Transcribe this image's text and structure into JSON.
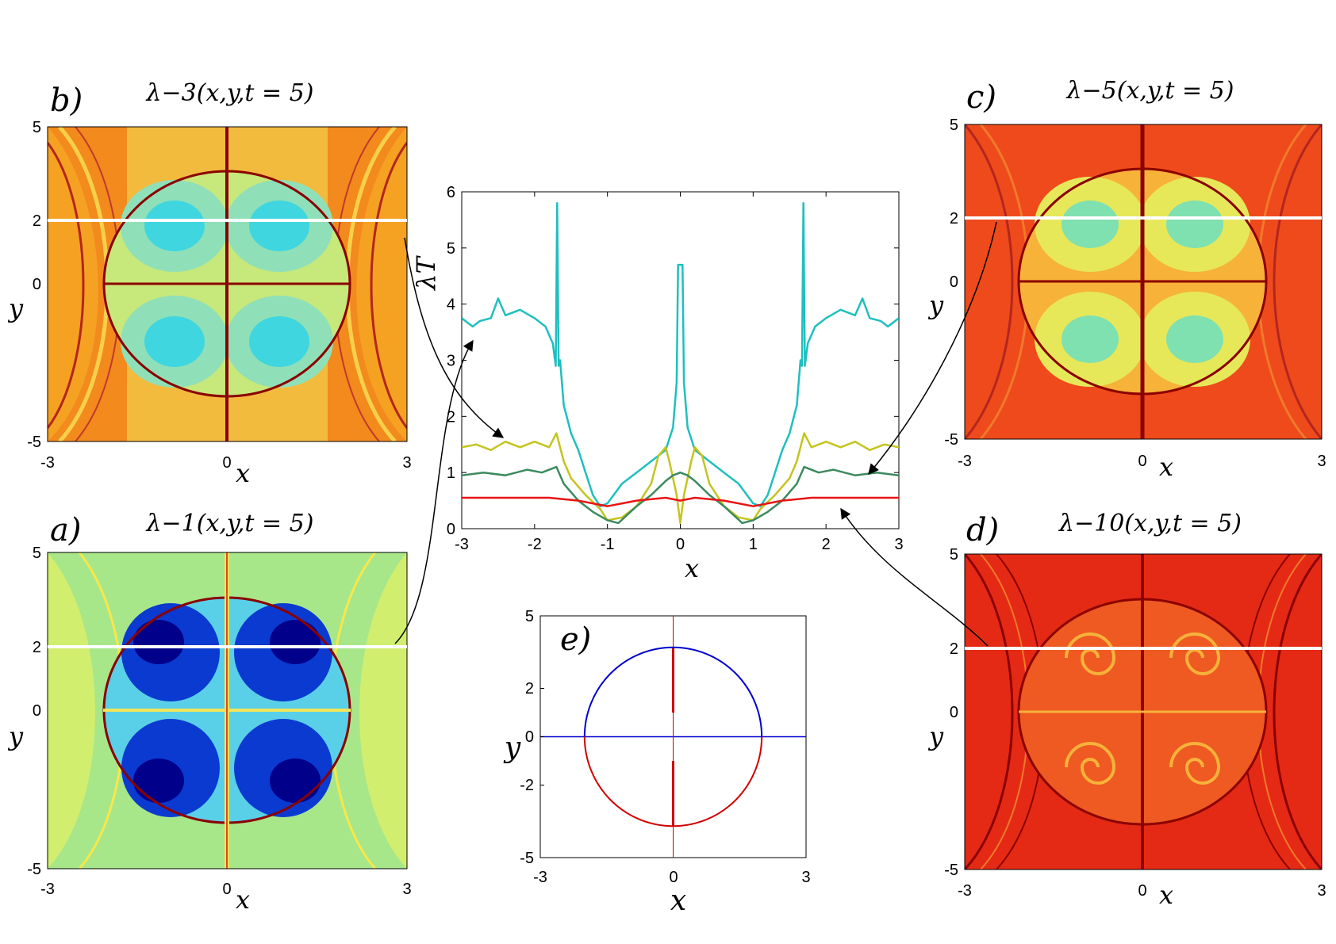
{
  "chart_data": [
    {
      "id": "a",
      "type": "heatmap",
      "panel_label": "a)",
      "title": "λ−1(x,y,t = 5)",
      "xlabel": "x",
      "ylabel": "y",
      "xlim": [
        -3,
        3
      ],
      "ylim": [
        -5,
        5
      ],
      "xticks": [
        "-3",
        "0",
        "3"
      ],
      "yticks": [
        "5",
        "2",
        "0",
        "-5"
      ],
      "colormap": "jet",
      "level": "low",
      "highlight_line_y": 2,
      "highlight_color": "#ffffff"
    },
    {
      "id": "b",
      "type": "heatmap",
      "panel_label": "b)",
      "title": "λ−3(x,y,t = 5)",
      "xlabel": "x",
      "ylabel": "y",
      "xlim": [
        -3,
        3
      ],
      "ylim": [
        -5,
        5
      ],
      "xticks": [
        "-3",
        "0",
        "3"
      ],
      "yticks": [
        "5",
        "2",
        "0",
        "-5"
      ],
      "colormap": "jet",
      "level": "medium",
      "highlight_line_y": 2,
      "highlight_color": "#ffffff"
    },
    {
      "id": "c",
      "type": "heatmap",
      "panel_label": "c)",
      "title": "λ−5(x,y,t = 5)",
      "xlabel": "x",
      "ylabel": "y",
      "xlim": [
        -3,
        3
      ],
      "ylim": [
        -5,
        5
      ],
      "xticks": [
        "-3",
        "0",
        "3"
      ],
      "yticks": [
        "5",
        "2",
        "0",
        "-5"
      ],
      "colormap": "jet",
      "level": "high",
      "highlight_line_y": 2,
      "highlight_color": "#ffffff"
    },
    {
      "id": "d",
      "type": "heatmap",
      "panel_label": "d)",
      "title": "λ−10(x,y,t = 5)",
      "xlabel": "x",
      "ylabel": "y",
      "xlim": [
        -3,
        3
      ],
      "ylim": [
        -5,
        5
      ],
      "xticks": [
        "-3",
        "0",
        "3"
      ],
      "yticks": [
        "5",
        "2",
        "0",
        "-5"
      ],
      "colormap": "jet",
      "level": "very-high",
      "highlight_line_y": 2,
      "highlight_color": "#ffffff"
    },
    {
      "id": "main",
      "type": "line",
      "title": "",
      "xlabel": "x",
      "ylabel": "λT",
      "xlim": [
        -3,
        3
      ],
      "ylim": [
        0,
        6
      ],
      "xticks": [
        -3,
        -2,
        -1,
        0,
        1,
        2,
        3
      ],
      "yticks": [
        0,
        1,
        2,
        3,
        4,
        5,
        6
      ],
      "series": [
        {
          "color": "#1fbfbf",
          "source_panel": "b",
          "x": [
            -3.0,
            -2.85,
            -2.75,
            -2.6,
            -2.5,
            -2.4,
            -2.2,
            -2.0,
            -1.85,
            -1.75,
            -1.71,
            -1.69,
            -1.67,
            -1.65,
            -1.6,
            -1.5,
            -1.4,
            -1.3,
            -1.2,
            -1.1,
            -1.0,
            -0.8,
            -0.6,
            -0.4,
            -0.2,
            -0.1,
            -0.05,
            -0.03,
            0.0,
            0.03,
            0.05,
            0.1,
            0.2,
            0.4,
            0.6,
            0.8,
            1.0,
            1.1,
            1.2,
            1.3,
            1.4,
            1.5,
            1.6,
            1.65,
            1.67,
            1.69,
            1.71,
            1.75,
            1.85,
            2.0,
            2.2,
            2.4,
            2.5,
            2.6,
            2.75,
            2.85,
            3.0
          ],
          "y": [
            3.75,
            3.6,
            3.7,
            3.75,
            4.1,
            3.8,
            3.9,
            3.75,
            3.6,
            3.3,
            2.9,
            5.8,
            2.9,
            3.0,
            2.2,
            1.7,
            1.4,
            1.0,
            0.6,
            0.4,
            0.45,
            0.8,
            1.0,
            1.2,
            1.4,
            1.8,
            2.6,
            4.7,
            4.7,
            4.7,
            2.6,
            1.8,
            1.4,
            1.2,
            1.0,
            0.8,
            0.45,
            0.4,
            0.6,
            1.0,
            1.4,
            1.7,
            2.2,
            3.0,
            2.9,
            5.8,
            2.9,
            3.3,
            3.6,
            3.75,
            3.9,
            3.8,
            4.1,
            3.75,
            3.7,
            3.6,
            3.75
          ]
        },
        {
          "color": "#c4c41e",
          "source_panel": "a",
          "x": [
            -3.0,
            -2.8,
            -2.6,
            -2.4,
            -2.2,
            -2.0,
            -1.8,
            -1.7,
            -1.6,
            -1.5,
            -1.3,
            -1.1,
            -1.0,
            -0.8,
            -0.6,
            -0.4,
            -0.3,
            -0.2,
            -0.15,
            -0.1,
            -0.05,
            0.0,
            0.05,
            0.1,
            0.15,
            0.2,
            0.3,
            0.4,
            0.6,
            0.8,
            1.0,
            1.1,
            1.3,
            1.5,
            1.6,
            1.7,
            1.8,
            2.0,
            2.2,
            2.4,
            2.6,
            2.8,
            3.0
          ],
          "y": [
            1.45,
            1.5,
            1.4,
            1.55,
            1.45,
            1.55,
            1.45,
            1.7,
            1.2,
            0.9,
            0.6,
            0.35,
            0.15,
            0.2,
            0.4,
            0.8,
            1.3,
            1.45,
            1.2,
            0.9,
            0.6,
            0.1,
            0.6,
            0.9,
            1.2,
            1.45,
            1.3,
            0.8,
            0.4,
            0.2,
            0.15,
            0.35,
            0.6,
            0.9,
            1.2,
            1.7,
            1.45,
            1.55,
            1.45,
            1.55,
            1.4,
            1.5,
            1.45
          ]
        },
        {
          "color": "#3d8a5f",
          "source_panel": "c",
          "x": [
            -3.0,
            -2.7,
            -2.4,
            -2.1,
            -1.9,
            -1.7,
            -1.6,
            -1.4,
            -1.2,
            -1.0,
            -0.85,
            -0.6,
            -0.4,
            -0.2,
            -0.1,
            0.0,
            0.1,
            0.2,
            0.4,
            0.6,
            0.85,
            1.0,
            1.2,
            1.4,
            1.6,
            1.7,
            1.9,
            2.1,
            2.4,
            2.7,
            3.0
          ],
          "y": [
            0.95,
            1.0,
            0.95,
            1.05,
            1.0,
            1.1,
            0.8,
            0.5,
            0.3,
            0.15,
            0.1,
            0.4,
            0.6,
            0.85,
            0.95,
            1.0,
            0.95,
            0.85,
            0.6,
            0.4,
            0.1,
            0.15,
            0.3,
            0.5,
            0.8,
            1.1,
            1.0,
            1.05,
            0.95,
            1.0,
            0.95
          ]
        },
        {
          "color": "#e81414",
          "source_panel": "d",
          "x": [
            -3.0,
            -2.6,
            -2.2,
            -1.8,
            -1.4,
            -1.0,
            -0.6,
            -0.2,
            0.0,
            0.2,
            0.6,
            1.0,
            1.4,
            1.8,
            2.2,
            2.6,
            3.0
          ],
          "y": [
            0.55,
            0.55,
            0.55,
            0.55,
            0.5,
            0.4,
            0.5,
            0.55,
            0.5,
            0.55,
            0.5,
            0.4,
            0.5,
            0.55,
            0.55,
            0.55,
            0.55
          ]
        }
      ]
    },
    {
      "id": "e",
      "type": "line",
      "panel_label": "e)",
      "title": "",
      "xlabel": "x",
      "ylabel": "y",
      "xlim": [
        -3,
        3
      ],
      "ylim": [
        -5,
        5
      ],
      "xticks": [
        "-3",
        "0",
        "3"
      ],
      "yticks": [
        "5",
        "2",
        "0",
        "-2",
        "-5"
      ],
      "circle_radius_x": 2.0,
      "circle_radius_y": 3.7,
      "upper_color": "#0000d0",
      "lower_color": "#d00000"
    }
  ]
}
